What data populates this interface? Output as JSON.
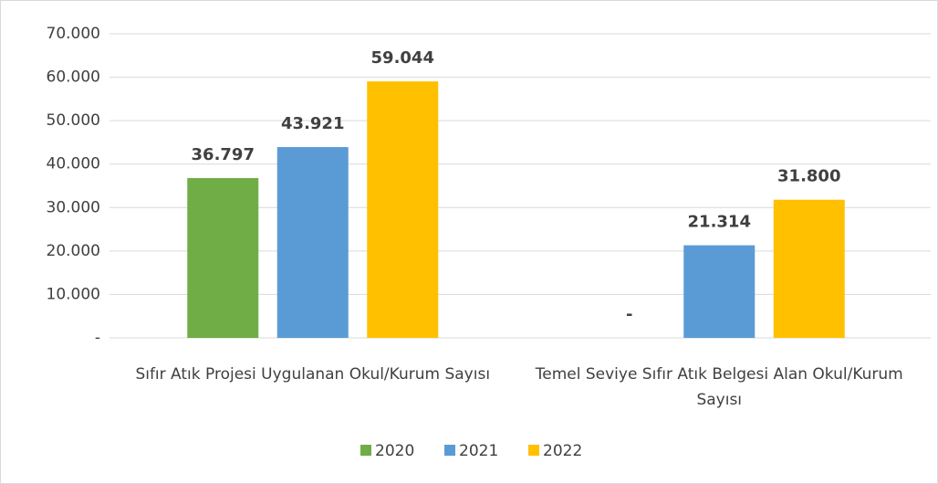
{
  "chart_data": {
    "type": "bar",
    "categories": [
      "Sıfır Atık Projesi Uygulanan Okul/Kurum Sayısı",
      "Temel Seviye Sıfır Atık Belgesi Alan Okul/Kurum Sayısı"
    ],
    "series": [
      {
        "name": "2020",
        "color": "#70ad47",
        "values": [
          36797,
          0
        ],
        "value_labels": [
          "36.797",
          "-"
        ]
      },
      {
        "name": "2021",
        "color": "#5b9bd5",
        "values": [
          43921,
          21314
        ],
        "value_labels": [
          "43.921",
          "21.314"
        ]
      },
      {
        "name": "2022",
        "color": "#ffc000",
        "values": [
          59044,
          31800
        ],
        "value_labels": [
          "59.044",
          "31.800"
        ]
      }
    ],
    "ylim": [
      0,
      70000
    ],
    "yticks": [
      {
        "value": 0,
        "label": "-"
      },
      {
        "value": 10000,
        "label": "10.000"
      },
      {
        "value": 20000,
        "label": "20.000"
      },
      {
        "value": 30000,
        "label": "30.000"
      },
      {
        "value": 40000,
        "label": "40.000"
      },
      {
        "value": 50000,
        "label": "50.000"
      },
      {
        "value": 60000,
        "label": "60.000"
      },
      {
        "value": 70000,
        "label": "70.000"
      }
    ],
    "grid": true,
    "legend": "bottom"
  }
}
